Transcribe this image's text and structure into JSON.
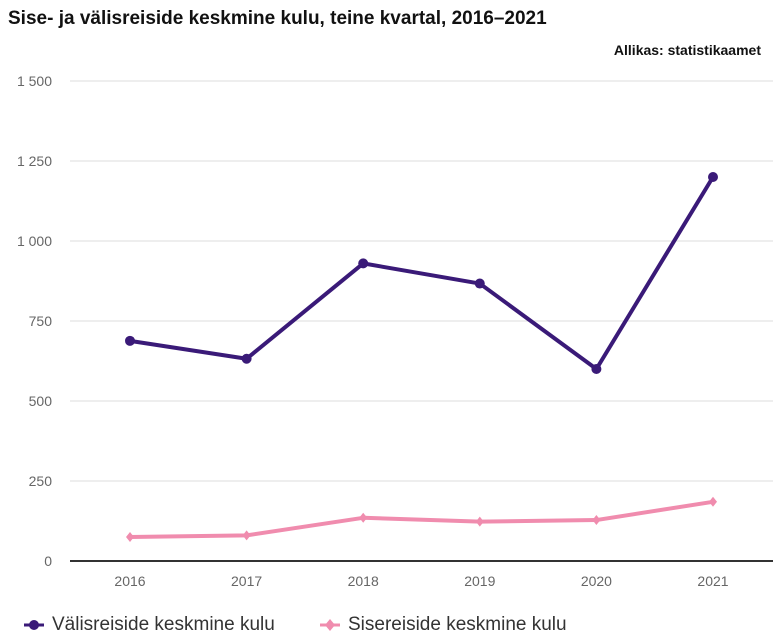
{
  "chart_data": {
    "type": "line",
    "title": "Sise- ja välisreiside keskmine kulu, teine kvartal, 2016–2021",
    "source": "Allikas: statistikaamet",
    "categories": [
      "2016",
      "2017",
      "2018",
      "2019",
      "2020",
      "2021"
    ],
    "ylim": [
      0,
      1500
    ],
    "yticks": [
      0,
      250,
      500,
      750,
      1000,
      1250,
      1500
    ],
    "ytick_labels": [
      "0",
      "250",
      "500",
      "750",
      "1 000",
      "1 250",
      "1 500"
    ],
    "grid": true,
    "legend_position": "bottom-left",
    "series": [
      {
        "name": "Välisreiside keskmine kulu",
        "color": "#3a1a78",
        "marker": "circle",
        "values": [
          688,
          632,
          930,
          867,
          600,
          1200
        ]
      },
      {
        "name": "Sisereiside keskmine kulu",
        "color": "#f08cae",
        "marker": "diamond",
        "values": [
          75,
          80,
          135,
          123,
          128,
          185
        ]
      }
    ]
  }
}
